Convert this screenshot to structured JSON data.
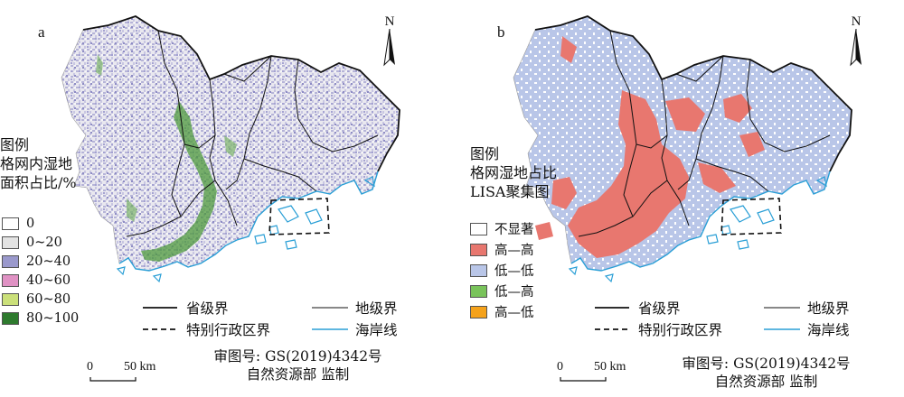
{
  "panel_a": {
    "letter": "a",
    "north_label": "N",
    "legend_title_lines": [
      "图例",
      "格网内湿地",
      "面积占比/%"
    ],
    "legend_items": [
      {
        "label": "0",
        "color": "#ffffff"
      },
      {
        "label": "0~20",
        "color": "#e3e3e3"
      },
      {
        "label": "20~40",
        "color": "#9a99cc"
      },
      {
        "label": "40~60",
        "color": "#e092c4"
      },
      {
        "label": "60~80",
        "color": "#cbe07a"
      },
      {
        "label": "80~100",
        "color": "#2e7a2e"
      }
    ],
    "lines": {
      "province": "省级界",
      "prefecture": "地级界",
      "sar": "特别行政区界",
      "coast": "海岸线"
    },
    "scale": {
      "zero": "0",
      "label": "50 km"
    },
    "credit": [
      "审图号: GS(2019)4342号",
      "自然资源部 监制"
    ]
  },
  "panel_b": {
    "letter": "b",
    "north_label": "N",
    "legend_title_lines": [
      "图例",
      "格网湿地占比",
      "LISA聚集图"
    ],
    "legend_items": [
      {
        "label": "不显著",
        "color": "#ffffff"
      },
      {
        "label": "高—高",
        "color": "#e8776f"
      },
      {
        "label": "低—低",
        "color": "#b9c6e8"
      },
      {
        "label": "低—高",
        "color": "#79c35b"
      },
      {
        "label": "高—低",
        "color": "#f5a21b"
      }
    ],
    "lines": {
      "province": "省级界",
      "prefecture": "地级界",
      "sar": "特别行政区界",
      "coast": "海岸线"
    },
    "scale": {
      "zero": "0",
      "label": "50 km"
    },
    "credit": [
      "审图号: GS(2019)4342号",
      "自然资源部 监制"
    ]
  },
  "colors": {
    "coast": "#2a9fd6",
    "boundary": "#111111"
  }
}
